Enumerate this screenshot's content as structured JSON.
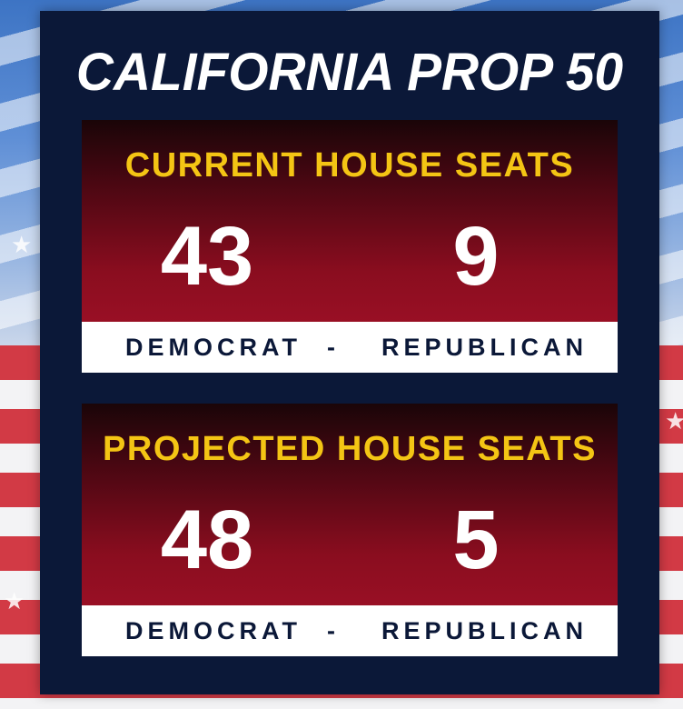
{
  "title": "CALIFORNIA PROP 50",
  "sections": [
    {
      "heading": "CURRENT HOUSE SEATS",
      "democrat_seats": "43",
      "republican_seats": "9",
      "democrat_label": "DEMOCRAT",
      "separator": "-",
      "republican_label": "REPUBLICAN"
    },
    {
      "heading": "PROJECTED HOUSE SEATS",
      "democrat_seats": "48",
      "republican_seats": "5",
      "democrat_label": "DEMOCRAT",
      "separator": "-",
      "republican_label": "REPUBLICAN"
    }
  ],
  "colors": {
    "panel": "#0b1838",
    "heading_gold": "#f4c514",
    "card_red": "#a8122a",
    "text_white": "#ffffff",
    "label_navy": "#0b1838"
  },
  "icons": [
    "star-icon"
  ]
}
